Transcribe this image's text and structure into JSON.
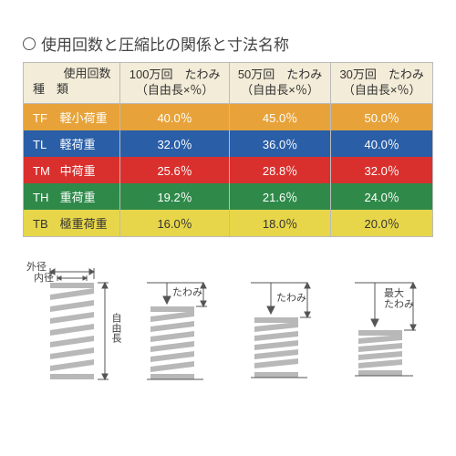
{
  "title": "使用回数と圧縮比の関係と寸法名称",
  "table": {
    "headers": {
      "type_top": "使用回数",
      "type_bottom": "種　類",
      "col1_top": "100万回　たわみ",
      "col1_bottom": "（自由長×％）",
      "col2_top": "50万回　たわみ",
      "col2_bottom": "（自由長×％）",
      "col3_top": "30万回　たわみ",
      "col3_bottom": "（自由長×％）"
    },
    "header_bg": "#f3ecd8",
    "rows": [
      {
        "code": "TF",
        "name": "軽小荷重",
        "v1": "40.0％",
        "v2": "45.0％",
        "v3": "50.0％",
        "bg": "#e7a33a",
        "fg": "#ffffff"
      },
      {
        "code": "TL",
        "name": "軽荷重",
        "v1": "32.0％",
        "v2": "36.0％",
        "v3": "40.0％",
        "bg": "#2a5fa8",
        "fg": "#ffffff"
      },
      {
        "code": "TM",
        "name": "中荷重",
        "v1": "25.6％",
        "v2": "28.8％",
        "v3": "32.0％",
        "bg": "#d9302e",
        "fg": "#ffffff"
      },
      {
        "code": "TH",
        "name": "重荷重",
        "v1": "19.2％",
        "v2": "21.6％",
        "v3": "24.0％",
        "bg": "#2f8a4a",
        "fg": "#ffffff"
      },
      {
        "code": "TB",
        "name": "極重荷重",
        "v1": "16.0％",
        "v2": "18.0％",
        "v3": "20.0％",
        "bg": "#e7d64a",
        "fg": "#333333"
      }
    ]
  },
  "diagram_labels": {
    "outer": "外径",
    "inner": "内径",
    "free_length": "自由長",
    "deflection": "たわみ",
    "max_deflection": "最大\nたわみ"
  },
  "spring_color": "#b8b8b8",
  "dim_line_color": "#555555"
}
